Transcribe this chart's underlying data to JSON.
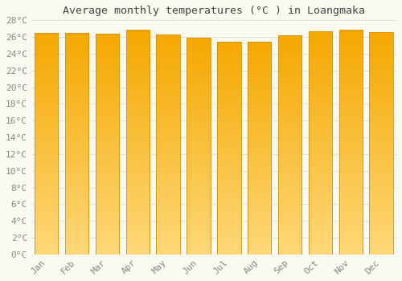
{
  "title": "Average monthly temperatures (°C ) in Loangmaka",
  "months": [
    "Jan",
    "Feb",
    "Mar",
    "Apr",
    "May",
    "Jun",
    "Jul",
    "Aug",
    "Sep",
    "Oct",
    "Nov",
    "Dec"
  ],
  "values": [
    26.5,
    26.5,
    26.4,
    26.8,
    26.3,
    25.9,
    25.4,
    25.4,
    26.2,
    26.7,
    26.8,
    26.6
  ],
  "ylim": [
    0,
    28
  ],
  "yticks": [
    0,
    2,
    4,
    6,
    8,
    10,
    12,
    14,
    16,
    18,
    20,
    22,
    24,
    26,
    28
  ],
  "bar_color_top": "#F5A800",
  "bar_color_bottom": "#FFD878",
  "bar_edge_color": "#D4900A",
  "background_color": "#FAFAF0",
  "grid_color": "#DDDDDD",
  "title_fontsize": 9.5,
  "tick_fontsize": 8,
  "title_color": "#444444",
  "tick_color": "#888888",
  "bar_width": 0.78,
  "gradient_steps": 200
}
